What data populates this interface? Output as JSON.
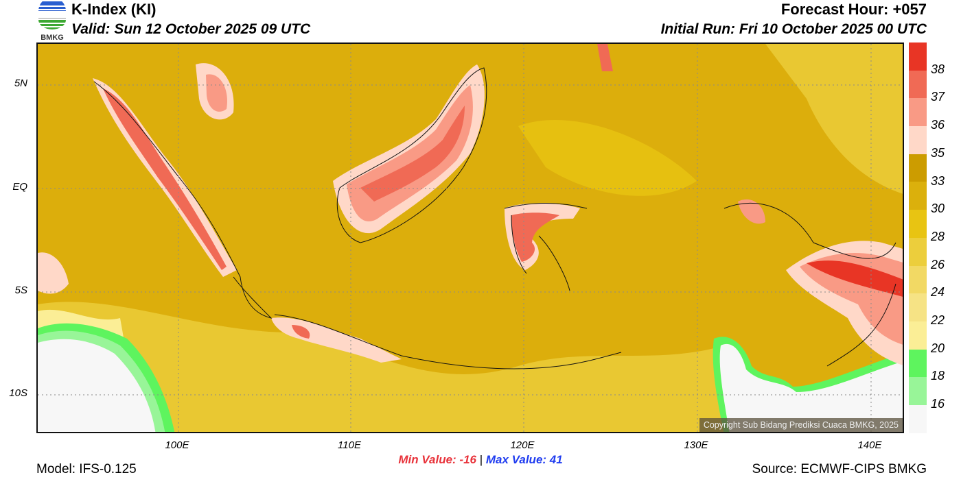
{
  "header": {
    "title": "K-Index (KI)",
    "valid": "Valid: Sun 12 October 2025 09 UTC",
    "forecast_hour": "Forecast Hour: +057",
    "initial_run": "Initial Run: Fri 10 October 2025 00 UTC",
    "logo_text": "BMKG"
  },
  "map": {
    "lat_labels": [
      "5N",
      "EQ",
      "5S",
      "10S"
    ],
    "lon_labels": [
      "100E",
      "110E",
      "120E",
      "130E",
      "140E"
    ],
    "copyright": "Copyright Sub Bidang Prediksi Cuaca BMKG, 2025"
  },
  "colorbar": {
    "labels": [
      "38",
      "37",
      "36",
      "35",
      "33",
      "30",
      "28",
      "26",
      "24",
      "22",
      "20",
      "18",
      "16"
    ],
    "colors": [
      "#e83525",
      "#f06a55",
      "#f99a85",
      "#ffd8c8",
      "#cc9c00",
      "#dbb00c",
      "#e8c412",
      "#ecce3c",
      "#f2d964",
      "#f6e385",
      "#fbee96",
      "#5ef45e",
      "#98f598",
      "#f7f7f7"
    ]
  },
  "footer": {
    "min_label": "Min Value: -16",
    "separator": "|",
    "max_label": "Max Value:  41",
    "model": "Model: IFS-0.125",
    "source": "Source: ECMWF-CIPS BMKG"
  }
}
